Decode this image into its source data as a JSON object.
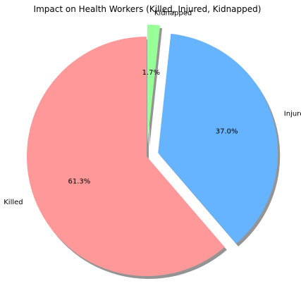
{
  "chart_data": {
    "type": "pie",
    "title": "Impact on Health Workers (Killed, Injured, Kidnapped)",
    "slices": [
      {
        "label": "Killed",
        "value": 61.3,
        "pct_label": "61.3%",
        "color": "#ff9999",
        "exploded": false
      },
      {
        "label": "Injured",
        "value": 37.0,
        "pct_label": "37.0%",
        "color": "#66b3ff",
        "exploded": true
      },
      {
        "label": "Kidnapped",
        "value": 1.7,
        "pct_label": "1.7%",
        "color": "#99ff99",
        "exploded": true
      }
    ],
    "start_angle_deg": 90,
    "direction": "counterclockwise",
    "shadow": true,
    "legend": "none"
  }
}
